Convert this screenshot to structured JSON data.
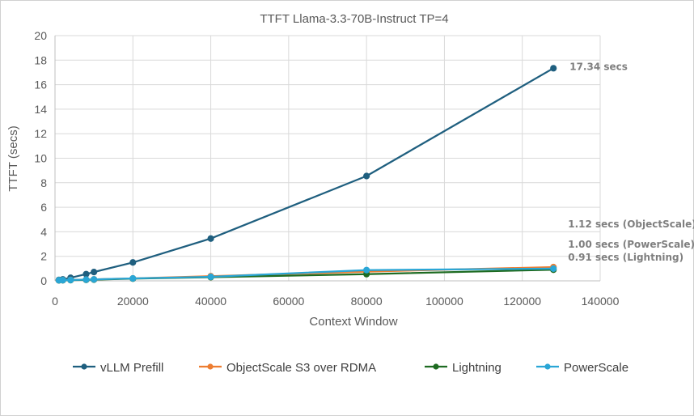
{
  "chart_data": {
    "type": "line",
    "title": "TTFT Llama-3.3-70B-Instruct TP=4",
    "xlabel": "Context  Window",
    "ylabel": "TTFT (secs)",
    "xlim": [
      0,
      140000
    ],
    "ylim": [
      0,
      20
    ],
    "xticks": [
      0,
      20000,
      40000,
      60000,
      80000,
      100000,
      120000,
      140000
    ],
    "yticks": [
      0,
      2,
      4,
      6,
      8,
      10,
      12,
      14,
      16,
      18,
      20
    ],
    "grid": true,
    "legend": "bottom",
    "series": [
      {
        "name": "vLLM Prefill",
        "color": "#1f5f7f",
        "x": [
          1000,
          2000,
          4000,
          8000,
          10000,
          20000,
          40000,
          80000,
          128000
        ],
        "y": [
          0.08,
          0.12,
          0.25,
          0.55,
          0.72,
          1.5,
          3.45,
          8.55,
          17.34
        ]
      },
      {
        "name": "ObjectScale S3 over RDMA",
        "color": "#ed7d31",
        "x": [
          1000,
          2000,
          4000,
          8000,
          10000,
          20000,
          40000,
          80000,
          128000
        ],
        "y": [
          0.05,
          0.06,
          0.08,
          0.1,
          0.12,
          0.2,
          0.38,
          0.75,
          1.12
        ]
      },
      {
        "name": "Lightning",
        "color": "#1e6b22",
        "x": [
          1000,
          2000,
          4000,
          8000,
          10000,
          20000,
          40000,
          80000,
          128000
        ],
        "y": [
          0.04,
          0.05,
          0.06,
          0.08,
          0.1,
          0.18,
          0.3,
          0.55,
          0.91
        ]
      },
      {
        "name": "PowerScale",
        "color": "#2aa6d6",
        "x": [
          1000,
          2000,
          4000,
          8000,
          10000,
          20000,
          40000,
          80000,
          128000
        ],
        "y": [
          0.05,
          0.06,
          0.07,
          0.1,
          0.12,
          0.2,
          0.33,
          0.88,
          1.0
        ]
      }
    ],
    "annotations": [
      {
        "text": "17.34 secs",
        "series": "vLLM Prefill"
      },
      {
        "text": "1.12 secs (ObjectScale)",
        "series": "ObjectScale S3 over RDMA"
      },
      {
        "text": "1.00 secs (PowerScale)",
        "series": "PowerScale"
      },
      {
        "text": "0.91 secs (Lightning)",
        "series": "Lightning"
      }
    ]
  }
}
